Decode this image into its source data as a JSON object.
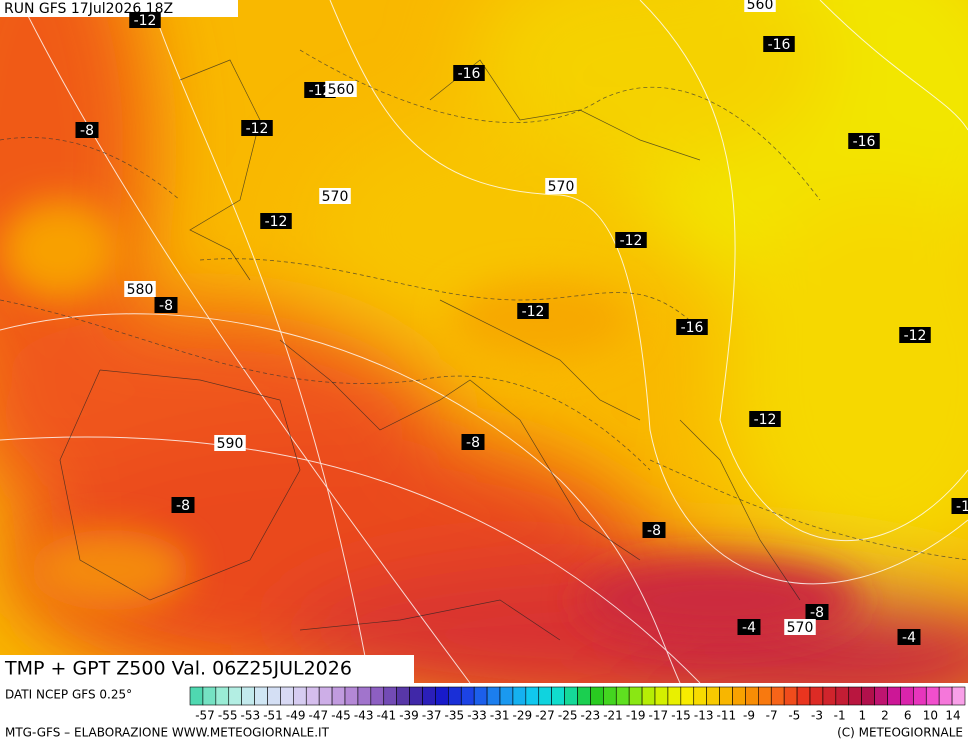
{
  "header": "RUN GFS 17Jul2026 18Z",
  "title": "TMP + GPT Z500 Val. 06Z25JUL2026",
  "source": "DATI NCEP GFS 0.25°",
  "colorbar_labels": [
    "-57",
    "-55",
    "-53",
    "-51",
    "-49",
    "-47",
    "-45",
    "-43",
    "-41",
    "-39",
    "-37",
    "-35",
    "-33",
    "-31",
    "-29",
    "-27",
    "-25",
    "-23",
    "-21",
    "-19",
    "-17",
    "-15",
    "-13",
    "-11",
    "-9",
    "-7",
    "-5",
    "-3",
    "-1",
    "1",
    "2",
    "6",
    "10",
    "14"
  ],
  "footer_left": "MTG-GFS – ELABORAZIONE WWW.METEOGIORNALE.IT",
  "footer_right": "(C) METEOGIORNALE",
  "temperature_labels": [
    "-12",
    "-12",
    "-12",
    "-12",
    "-12",
    "-12",
    "-12",
    "-12",
    "-16",
    "-16",
    "-16",
    "-16",
    "-8",
    "-8",
    "-8",
    "-8",
    "-8",
    "-8",
    "-4",
    "-4",
    "-1"
  ],
  "height_labels": [
    "560",
    "560",
    "570",
    "570",
    "570",
    "580",
    "590"
  ]
}
